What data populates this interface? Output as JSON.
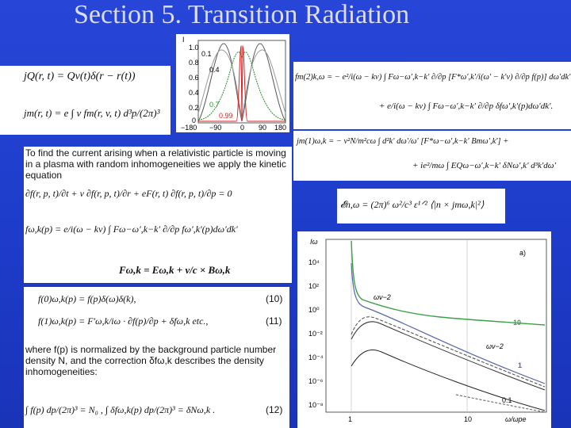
{
  "title": "Section 5. Transition Radiation",
  "equations": {
    "current_q": "jQ(r, t) = Qv(t)δ(r − r(t))",
    "current_m": "jm(r, t) = e ∫ v fm(r, v, t) d³p/(2π)³",
    "second_order_1": "fm(2)k,ω = − e²/i(ω − kv) ∫ Fω−ω′,k−k′ ∂/∂p [F*ω′,k′/i(ω′ − k′v) ∂/∂p f(p)] dω′dk′",
    "second_order_2": "+ e/i(ω − kv) ∫ Fω−ω′,k−k′ ∂/∂p δfω′,k′(p)dω′dk′.",
    "first_order_current_1": "jm(1)ω,k = − ν²N/m²cω ∫ d²k′ dω′/ω′ [F*ω−ω′,k−k′ Bmω′,k′] +",
    "first_order_current_2": "+ ie²/mω ∫ EQω−ω′,k−k′ δNω′,k′ d³k′dω′",
    "intensity": "𝓔n,ω = (2π)⁶ ω²/c³ ε¹ᐟ² ⟨|n × jmω,k|²⟩"
  },
  "kinetic": {
    "intro": "To find the current arising when a relativistic particle is moving in a plasma with random inhomogeneities we apply the kinetic equation",
    "equation": "∂f(r, p, t)/∂t + v ∂f(r, p, t)/∂r + eF(r, t) ∂f(r, p, t)/∂p = 0",
    "solution": "fω,k(p) = e/i(ω − kv) ∫ Fω−ω′,k−k′ ∂/∂p fω′,k′(p)dω′dk′",
    "force": "Fω,k = Eω,k + v/c × Bω,k"
  },
  "expansion": {
    "eq10": "f(0)ω,k(p) = f(p)δ(ω)δ(k),",
    "eq10_number": "(10)",
    "eq11": "f(1)ω,k(p) = F′ω,k/iω · ∂f(p)/∂p + δfω,k   etc.,",
    "eq11_number": "(11)",
    "note": "where f(p) is normalized by the background particle number density N, and the correction δfω,k describes the density inhomogeneities:",
    "eq12": "∫ f(p) dp/(2π)³ = N₀ ,    ∫ δfω,k(p) dp/(2π)³ = δNω,k .",
    "eq12_number": "(12)"
  },
  "angular_plot": {
    "y_axis_label": "I",
    "yticks": [
      "1.0",
      "0.8",
      "0.6",
      "0.4",
      "0.2",
      "0"
    ],
    "xticks": [
      "−180",
      "−90",
      "0",
      "90",
      "180"
    ],
    "curve_labels": [
      "0.1",
      "0.4",
      "0.7",
      "0.99"
    ]
  },
  "log_plot": {
    "y_axis_label": "Iω",
    "panel_label": "a)",
    "x_axis_label": "ω/ωpe",
    "yticks": [
      "10⁴",
      "10²",
      "10⁰",
      "10⁻²",
      "10⁻⁴",
      "10⁻⁶",
      "10⁻⁸"
    ],
    "xticks": [
      "1",
      "10"
    ],
    "annotations": [
      "ων−2",
      "ων−2",
      "10",
      "1",
      "0.1"
    ]
  }
}
